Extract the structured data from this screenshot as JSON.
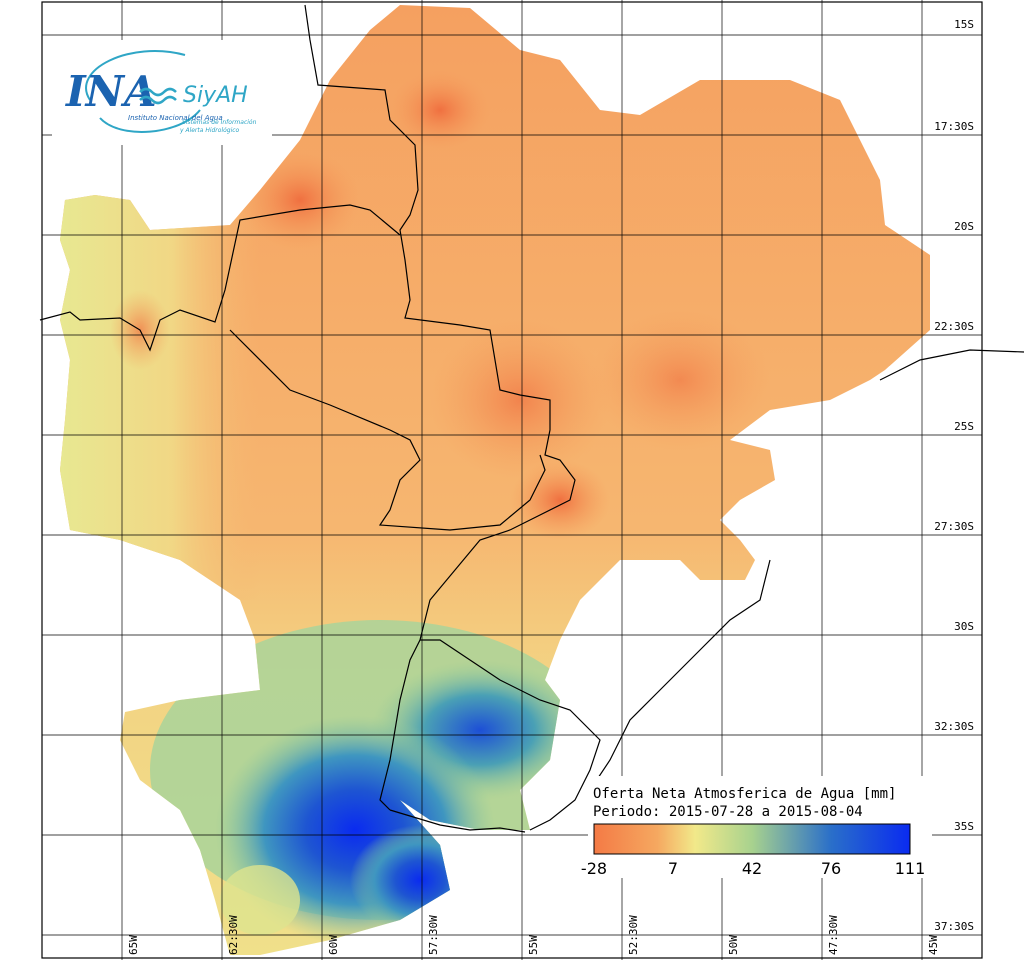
{
  "logo": {
    "brand": "INA",
    "product": "SiyAH",
    "institution": "Instituto Nacional del Agua",
    "tagline_line1": "Sistemas de Información",
    "tagline_line2": "y Alerta Hidrológico"
  },
  "legend": {
    "title": "Oferta Neta Atmosferica de Agua [mm]",
    "period": "Periodo: 2015-07-28 a 2015-08-04",
    "unit": "mm",
    "ticks": [
      "-28",
      "7",
      "42",
      "76",
      "111"
    ],
    "tick_values": [
      -28,
      7,
      42,
      76,
      111
    ],
    "colors": [
      "#f47a45",
      "#f5a860",
      "#f2e98a",
      "#a8d28e",
      "#2a6fc9",
      "#0a2bf0"
    ]
  },
  "grid": {
    "lat_labels": [
      "15S",
      "17:30S",
      "20S",
      "22:30S",
      "25S",
      "27:30S",
      "30S",
      "32:30S",
      "35S",
      "37:30S"
    ],
    "lon_labels": [
      "65W",
      "62:30W",
      "60W",
      "57:30W",
      "55W",
      "52:30W",
      "50W",
      "47:30W",
      "45W"
    ]
  },
  "colors": {
    "border": "#000000",
    "grid": "#000000",
    "background": "#ffffff",
    "logo_blue": "#1b63b0",
    "logo_teal": "#2fa6c6"
  }
}
